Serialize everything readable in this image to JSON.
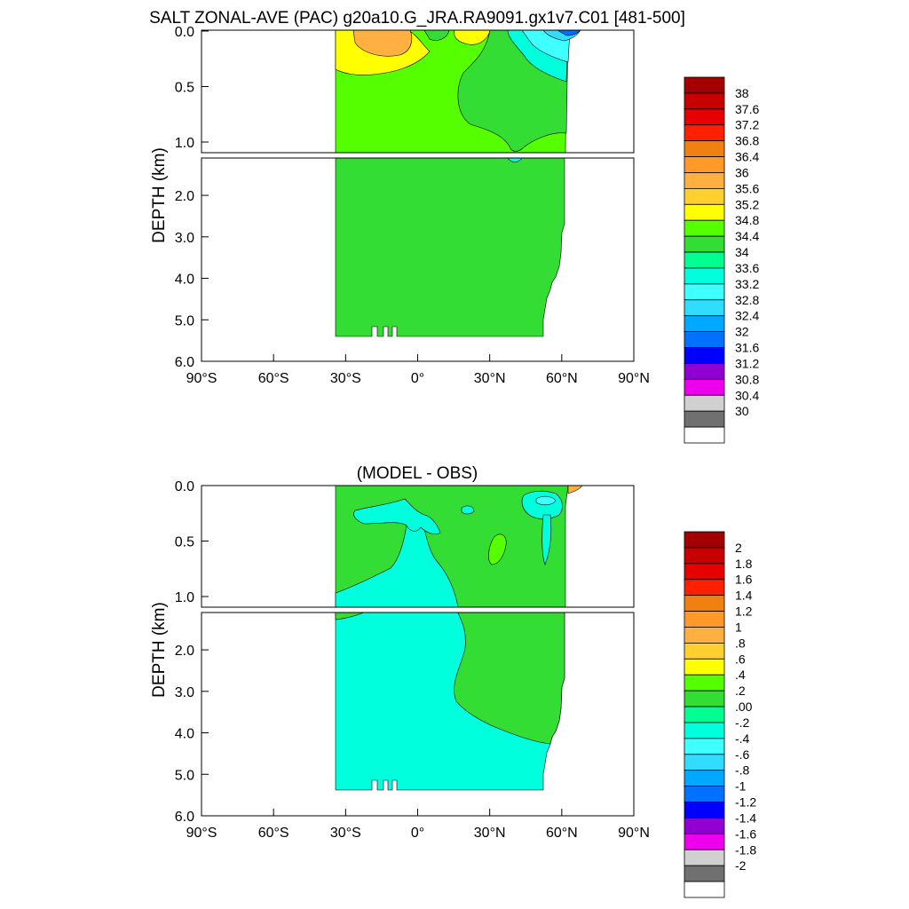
{
  "chart_data": [
    {
      "type": "heatmap",
      "title": "SALT ZONAL-AVE (PAC) g20a10.G_JRA.RA9091.gx1v7.C01 [481-500]",
      "ylabel": "DEPTH (km)",
      "xlim": [
        -90,
        90
      ],
      "ylim": [
        6.0,
        0.0
      ],
      "x_ticks": [
        "90°S",
        "60°S",
        "30°S",
        "0°",
        "30°N",
        "60°N",
        "90°N"
      ],
      "y_ticks_upper": [
        "0.0",
        "0.5",
        "1.0"
      ],
      "y_ticks_lower": [
        "2.0",
        "3.0",
        "4.0",
        "5.0",
        "6.0"
      ],
      "colorbar": {
        "levels": [
          "38",
          "37.6",
          "37.2",
          "36.8",
          "36.4",
          "36",
          "35.6",
          "35.2",
          "34.8",
          "34.4",
          "34",
          "33.6",
          "33.2",
          "32.8",
          "32.4",
          "32",
          "31.6",
          "31.2",
          "30.8",
          "30.4",
          "30"
        ],
        "colors": [
          "#a50000",
          "#c80000",
          "#e60000",
          "#ff2000",
          "#f08010",
          "#ff9a2a",
          "#ffb040",
          "#ffd030",
          "#ffff00",
          "#55ff00",
          "#33dd33",
          "#00ff90",
          "#00ffdd",
          "#40ffff",
          "#30ddff",
          "#00a8ff",
          "#0070ff",
          "#0000ff",
          "#9000d0",
          "#ee00ee",
          "#d0d0d0",
          "#707070",
          "#ffffff"
        ]
      }
    },
    {
      "type": "heatmap",
      "title": "(MODEL - OBS)",
      "ylabel": "DEPTH (km)",
      "xlim": [
        -90,
        90
      ],
      "ylim": [
        6.0,
        0.0
      ],
      "x_ticks": [
        "90°S",
        "60°S",
        "30°S",
        "0°",
        "30°N",
        "60°N",
        "90°N"
      ],
      "y_ticks_upper": [
        "0.0",
        "0.5",
        "1.0"
      ],
      "y_ticks_lower": [
        "2.0",
        "3.0",
        "4.0",
        "5.0",
        "6.0"
      ],
      "colorbar": {
        "levels": [
          "2",
          "1.8",
          "1.6",
          "1.4",
          "1.2",
          "1",
          ".8",
          ".6",
          ".4",
          ".2",
          ".00",
          "-.2",
          "-.4",
          "-.6",
          "-.8",
          "-1",
          "-1.2",
          "-1.4",
          "-1.6",
          "-1.8",
          "-2"
        ],
        "colors": [
          "#a50000",
          "#c80000",
          "#e60000",
          "#ff2000",
          "#f08010",
          "#ff9a2a",
          "#ffb040",
          "#ffd030",
          "#ffff00",
          "#55ff00",
          "#33dd33",
          "#00ff90",
          "#00ffdd",
          "#40ffff",
          "#30ddff",
          "#00a8ff",
          "#0070ff",
          "#0000ff",
          "#9000d0",
          "#ee00ee",
          "#d0d0d0",
          "#707070",
          "#ffffff"
        ]
      }
    }
  ]
}
